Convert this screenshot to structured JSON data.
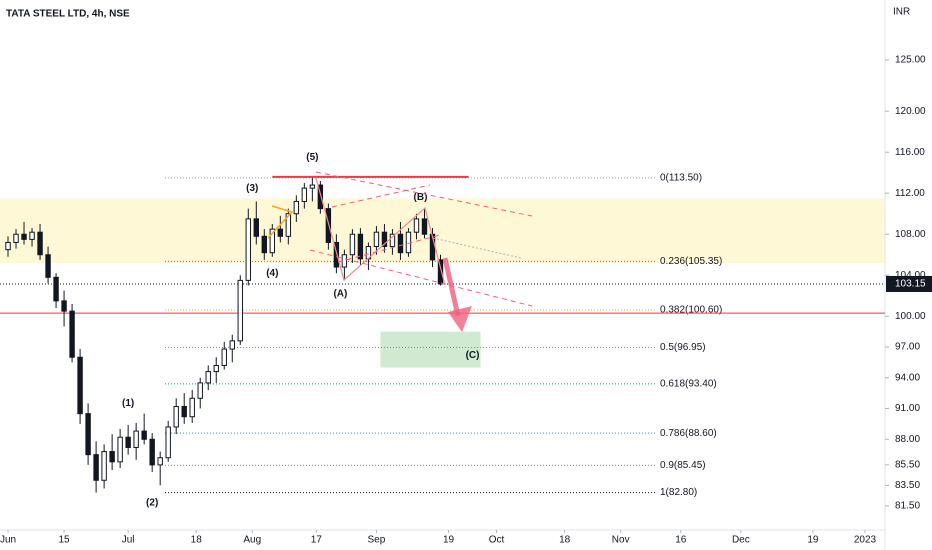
{
  "chart_data": {
    "type": "candlestick",
    "title": "TATA STEEL LTD, 4h, NSE",
    "currency": "INR",
    "x": [
      0,
      2,
      4,
      6,
      8,
      10,
      12,
      14,
      16,
      18,
      20,
      22,
      24,
      26,
      28,
      30,
      32,
      34,
      36,
      38,
      40,
      42,
      44,
      46,
      48,
      50,
      52,
      54,
      56,
      58,
      60,
      62,
      64,
      66,
      68,
      70,
      72,
      74,
      76,
      78,
      80,
      82,
      84,
      86,
      88,
      90,
      92,
      94,
      96,
      98,
      100,
      102,
      104,
      106,
      108
    ],
    "open": [
      106.5,
      107.2,
      108.0,
      107.5,
      108.2,
      106.0,
      103.8,
      101.5,
      100.5,
      96.0,
      90.5,
      86.5,
      84.0,
      86.8,
      85.8,
      88.2,
      87.2,
      88.8,
      88.0,
      85.5,
      86.2,
      89.2,
      91.2,
      90.2,
      92.0,
      93.5,
      94.6,
      95.2,
      96.8,
      97.6,
      103.5,
      109.5,
      107.8,
      106.2,
      108.5,
      107.8,
      110.0,
      111.2,
      112.5,
      112.8,
      110.5,
      107.2,
      104.8,
      106.0,
      108.0,
      105.6,
      106.8,
      108.2,
      106.8,
      108.0,
      106.2,
      108.2,
      109.5,
      108.0,
      105.5
    ],
    "high": [
      107.8,
      108.5,
      109.2,
      108.6,
      109.0,
      106.8,
      104.2,
      102.5,
      101.2,
      96.8,
      91.5,
      87.8,
      87.5,
      88.5,
      89.0,
      89.4,
      89.6,
      90.5,
      88.6,
      86.8,
      89.8,
      92.0,
      92.5,
      92.8,
      94.0,
      95.2,
      96.0,
      97.5,
      98.2,
      104.0,
      110.5,
      111.2,
      108.5,
      109.0,
      109.8,
      110.5,
      111.8,
      113.0,
      113.5,
      113.2,
      111.0,
      108.0,
      106.5,
      108.5,
      108.6,
      107.2,
      108.8,
      109.0,
      108.5,
      109.2,
      108.6,
      110.0,
      110.5,
      108.6,
      106.0
    ],
    "low": [
      105.8,
      106.6,
      107.0,
      106.8,
      105.5,
      103.2,
      100.8,
      99.0,
      95.5,
      89.5,
      85.5,
      82.8,
      83.2,
      85.0,
      85.2,
      86.5,
      86.0,
      87.5,
      84.8,
      83.5,
      85.8,
      88.5,
      89.5,
      89.6,
      91.0,
      92.8,
      93.5,
      94.8,
      95.5,
      97.2,
      103.0,
      107.0,
      105.5,
      105.8,
      107.2,
      107.0,
      109.2,
      110.5,
      111.2,
      110.0,
      106.5,
      104.2,
      103.5,
      105.2,
      105.0,
      104.5,
      106.0,
      106.2,
      106.0,
      105.5,
      105.8,
      107.5,
      107.6,
      104.8,
      103.0
    ],
    "close": [
      107.2,
      108.0,
      107.5,
      108.2,
      106.0,
      103.8,
      101.5,
      100.5,
      96.0,
      90.5,
      86.5,
      84.0,
      86.8,
      85.8,
      88.2,
      87.2,
      88.8,
      88.0,
      85.5,
      86.2,
      89.2,
      91.2,
      90.2,
      92.0,
      93.5,
      94.6,
      95.2,
      96.8,
      97.6,
      103.5,
      109.5,
      107.8,
      106.2,
      108.5,
      107.8,
      110.0,
      111.2,
      112.5,
      112.8,
      110.5,
      107.2,
      104.8,
      106.0,
      108.0,
      105.6,
      106.8,
      108.2,
      106.8,
      108.0,
      106.2,
      108.2,
      109.5,
      108.0,
      105.5,
      103.15
    ],
    "up_color": "#ffffff",
    "down_color": "#131722",
    "xlim": [
      -2,
      219
    ],
    "xticks": [
      {
        "value": 0,
        "label": "Jun"
      },
      {
        "value": 14,
        "label": "15"
      },
      {
        "value": 30,
        "label": "Jul"
      },
      {
        "value": 47,
        "label": "18"
      },
      {
        "value": 61,
        "label": "Aug"
      },
      {
        "value": 77,
        "label": "17"
      },
      {
        "value": 92,
        "label": "Sep"
      },
      {
        "value": 110,
        "label": "19"
      },
      {
        "value": 122,
        "label": "Oct"
      },
      {
        "value": 139,
        "label": "18"
      },
      {
        "value": 153,
        "label": "Nov"
      },
      {
        "value": 168,
        "label": "16"
      },
      {
        "value": 183,
        "label": "Dec"
      },
      {
        "value": 201,
        "label": "19"
      },
      {
        "value": 214,
        "label": "2023"
      }
    ],
    "ylim": [
      79.15,
      130.85
    ],
    "yticks": [
      {
        "value": 81.5,
        "label": "81.50"
      },
      {
        "value": 83.5,
        "label": "83.50"
      },
      {
        "value": 85.5,
        "label": "85.50"
      },
      {
        "value": 88,
        "label": "88.00"
      },
      {
        "value": 91,
        "label": "91.00"
      },
      {
        "value": 94,
        "label": "94.00"
      },
      {
        "value": 97,
        "label": "97.00"
      },
      {
        "value": 100,
        "label": "100.00"
      },
      {
        "value": 104,
        "label": "104.00"
      },
      {
        "value": 108,
        "label": "108.00"
      },
      {
        "value": 112,
        "label": "112.00"
      },
      {
        "value": 116,
        "label": "116.00"
      },
      {
        "value": 120,
        "label": "120.00"
      },
      {
        "value": 125,
        "label": "125.00"
      }
    ],
    "last_price": {
      "value": 103.15,
      "label": "103.15"
    },
    "fib_levels": [
      {
        "value": 113.5,
        "label": "0(113.50)",
        "color": "#9e9e9e"
      },
      {
        "value": 105.35,
        "label": "0.236(105.35)",
        "color": "#f23645"
      },
      {
        "value": 100.6,
        "label": "0.382(100.60)",
        "color": "#c8c832"
      },
      {
        "value": 96.95,
        "label": "0.5(96.95)",
        "color": "#4caf50"
      },
      {
        "value": 93.4,
        "label": "0.618(93.40)",
        "color": "#089981"
      },
      {
        "value": 88.6,
        "label": "0.786(88.60)",
        "color": "#3d8fc4"
      },
      {
        "value": 85.45,
        "label": "0.9(85.45)",
        "color": "#4caf50"
      },
      {
        "value": 82.8,
        "label": "1(82.80)",
        "color": "#131722"
      }
    ],
    "hlines": [
      {
        "value": 100.3,
        "color": "#f23645"
      }
    ],
    "resistance": {
      "value": 113.6,
      "from": 66,
      "to": 115,
      "color": "#f23645"
    },
    "zones": [
      {
        "low": 105.2,
        "high": 111.5,
        "color": "#fff8d6"
      }
    ],
    "target_box": {
      "from": 93,
      "to": 118,
      "low": 95,
      "high": 98.5,
      "color": "#c8e6c9"
    },
    "annotations": [
      {
        "text": "(1)",
        "x": 30,
        "y": 91.5,
        "color": "#880e4f"
      },
      {
        "text": "(2)",
        "x": 36,
        "y": 81.8,
        "color": "#880e4f"
      },
      {
        "text": "(3)",
        "x": 61,
        "y": 112.5,
        "color": "#880e4f"
      },
      {
        "text": "(4)",
        "x": 66,
        "y": 104.2,
        "color": "#880e4f"
      },
      {
        "text": "(5)",
        "x": 76,
        "y": 115.5,
        "color": "#880e4f"
      },
      {
        "text": "(A)",
        "x": 83,
        "y": 102.2,
        "color": "#d6416b"
      },
      {
        "text": "(B)",
        "x": 103,
        "y": 111.6,
        "color": "#d6416b"
      },
      {
        "text": "(C)",
        "x": 116,
        "y": 96.2,
        "color": "#d6416b"
      }
    ]
  }
}
